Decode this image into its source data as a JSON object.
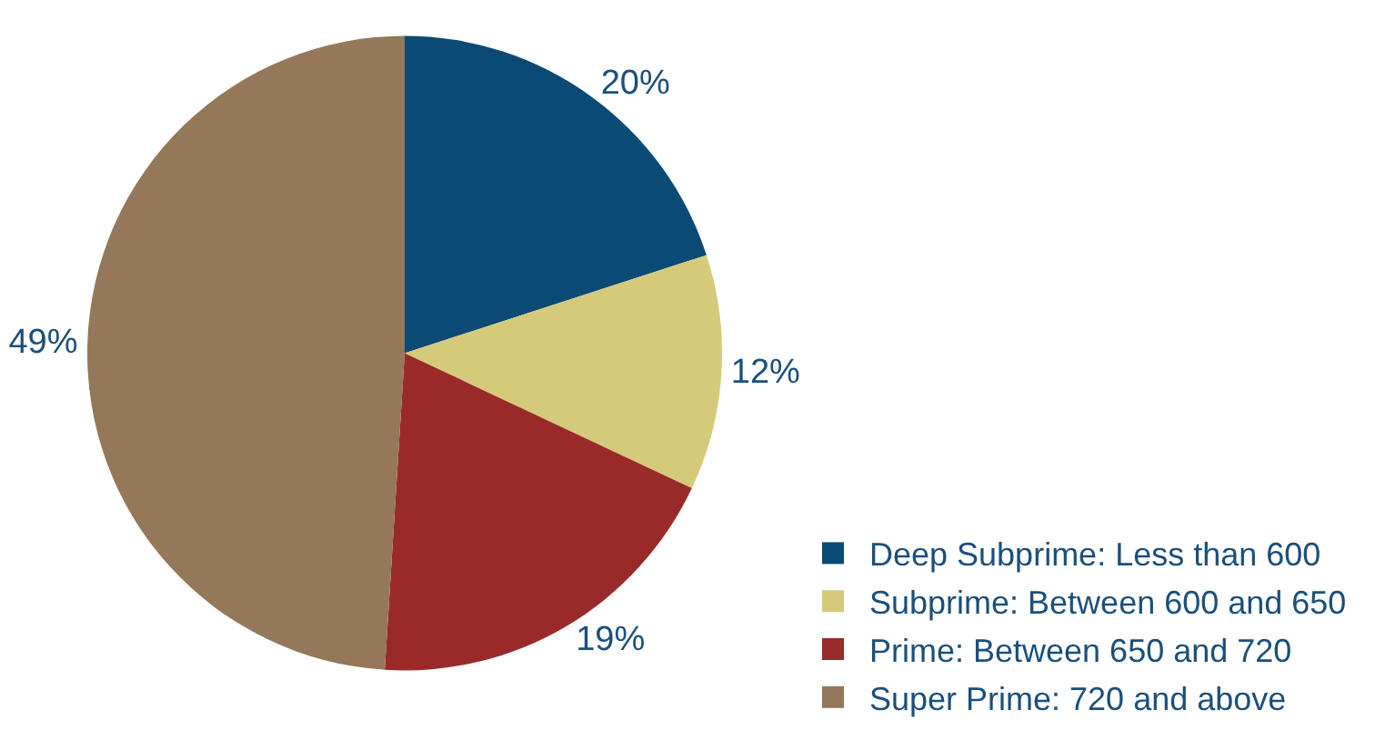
{
  "chart_data": {
    "type": "pie",
    "categories": [
      "Deep Subprime: Less than 600",
      "Subprime: Between 600 and 650",
      "Prime: Between 650 and 720",
      "Super Prime: 720 and above"
    ],
    "values": [
      20,
      12,
      19,
      49
    ],
    "value_labels": [
      "20%",
      "12%",
      "19%",
      "49%"
    ],
    "colors": [
      "#0b4a74",
      "#d5ca7a",
      "#9a2a2a",
      "#947859"
    ],
    "legend": "bottom right"
  }
}
